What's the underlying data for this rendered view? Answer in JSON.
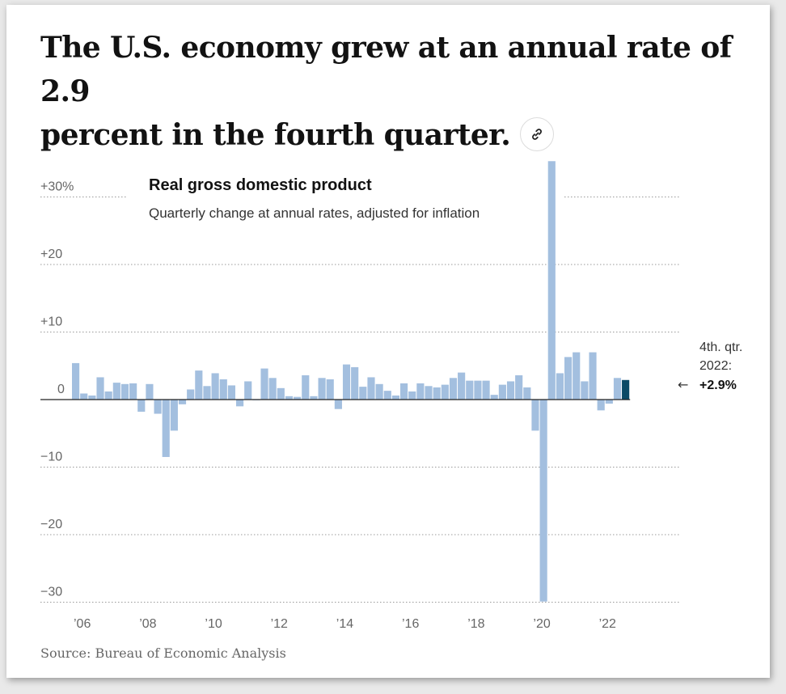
{
  "headline": {
    "line1": "The U.S. economy grew at an annual rate of 2.9",
    "line2": "percent in the fourth quarter."
  },
  "share_icon": "link-icon",
  "source": "Source: Bureau of Economic Analysis",
  "colors": {
    "bar": "#a3bfdf",
    "highlight": "#0b4a66",
    "grid": "#999999",
    "axis": "#222222",
    "text": "#121212",
    "muted": "#666666"
  },
  "chart_data": {
    "type": "bar",
    "title": "Real gross domestic product",
    "subtitle": "Quarterly change at annual rates, adjusted for inflation",
    "ylim": [
      -30,
      34
    ],
    "y_ticks": [
      {
        "value": 30,
        "label": "+30%"
      },
      {
        "value": 20,
        "label": "+20"
      },
      {
        "value": 10,
        "label": "+10"
      },
      {
        "value": 0,
        "label": "0"
      },
      {
        "value": -10,
        "label": "−10"
      },
      {
        "value": -20,
        "label": "−20"
      },
      {
        "value": -30,
        "label": "−30"
      }
    ],
    "x_ticks": [
      "’06",
      "’08",
      "’10",
      "’12",
      "’14",
      "’16",
      "’18",
      "’20",
      "’22"
    ],
    "grid": true,
    "start": "2006 Q1",
    "end": "2022 Q4",
    "values": [
      5.4,
      0.9,
      0.6,
      3.3,
      1.2,
      2.5,
      2.3,
      2.4,
      -1.8,
      2.3,
      -2.1,
      -8.5,
      -4.6,
      -0.7,
      1.5,
      4.3,
      2.0,
      3.9,
      3.0,
      2.1,
      -1.0,
      2.7,
      -0.1,
      4.6,
      3.2,
      1.7,
      0.5,
      0.4,
      3.6,
      0.5,
      3.2,
      3.0,
      -1.4,
      5.2,
      4.8,
      1.9,
      3.3,
      2.3,
      1.3,
      0.6,
      2.4,
      1.2,
      2.4,
      2.0,
      1.8,
      2.2,
      3.2,
      4.0,
      2.8,
      2.8,
      2.8,
      0.7,
      2.2,
      2.7,
      3.6,
      1.8,
      -4.6,
      -29.9,
      35.3,
      3.9,
      6.3,
      7.0,
      2.7,
      7.0,
      -1.6,
      -0.6,
      3.2,
      2.9
    ],
    "highlight_label": {
      "line1": "4th. qtr.",
      "line2": "2022:",
      "value": "+2.9%",
      "arrow": "←"
    }
  }
}
